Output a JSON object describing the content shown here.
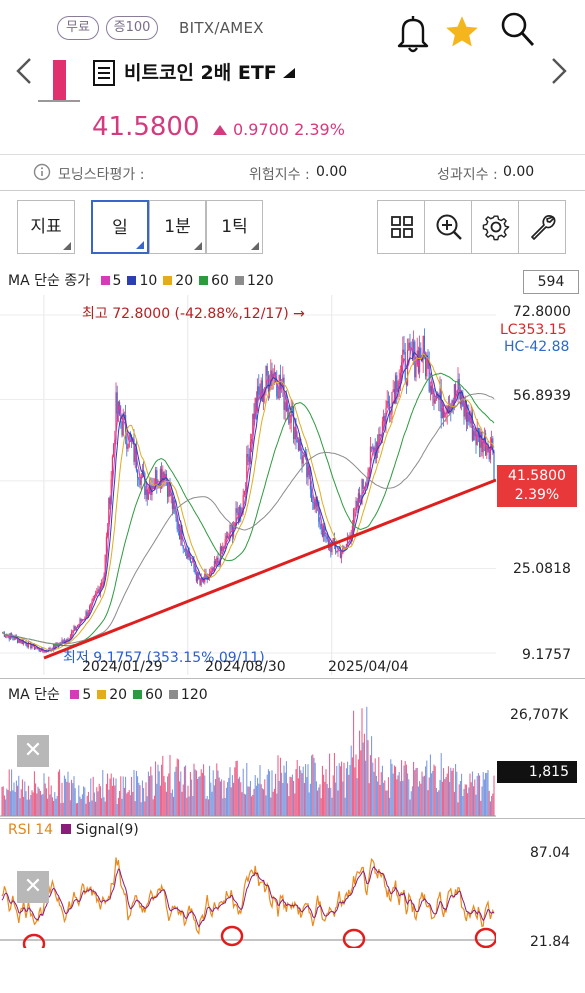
{
  "header": {
    "badge_free": "무료",
    "badge_margin": "증100",
    "ticker": "BITX/AMEX",
    "name": "비트코인 2배 ETF",
    "price": "41.5800",
    "change": "0.9700 2.39%"
  },
  "metrics": {
    "morningstar_label": "모닝스타평가 :",
    "risk_label": "위험지수 :",
    "risk_value": "0.00",
    "perf_label": "성과지수 :",
    "perf_value": "0.00"
  },
  "toolbar": {
    "indicator": "지표",
    "day": "일",
    "minute": "1분",
    "tick": "1틱"
  },
  "main_chart": {
    "legend_title": "MA 단순 종가",
    "ma": [
      {
        "label": "5",
        "color": "#d63ab6"
      },
      {
        "label": "10",
        "color": "#2b3fb0"
      },
      {
        "label": "20",
        "color": "#e2ac1a"
      },
      {
        "label": "60",
        "color": "#2c9a3f"
      },
      {
        "label": "120",
        "color": "#8c8c8c"
      }
    ],
    "count_box": "594",
    "y_ticks": [
      "72.8000",
      "56.8939",
      "25.0818",
      "9.1757"
    ],
    "lc_label": "LC353.15",
    "hc_label": "HC-42.88",
    "current_price": "41.5800",
    "current_pct": "2.39%",
    "high_annotation": "최고 72.8000 (-42.88%,12/17) →",
    "low_annotation": "최저 9.1757 (353.15%,09/11)",
    "x_labels": [
      "2024/01/29",
      "2024/08/30",
      "2025/04/04"
    ]
  },
  "volume_chart": {
    "legend_title": "MA 단순",
    "ma": [
      {
        "label": "5",
        "color": "#d63ab6"
      },
      {
        "label": "20",
        "color": "#e2ac1a"
      },
      {
        "label": "60",
        "color": "#2c9a3f"
      },
      {
        "label": "120",
        "color": "#8c8c8c"
      }
    ],
    "y_max": "26,707K",
    "current": "1,815"
  },
  "rsi_chart": {
    "rsi_label": "RSI 14",
    "signal_label": "Signal(9)",
    "y_ticks": [
      "87.04",
      "21.84"
    ]
  },
  "chart_data": {
    "type": "line",
    "title": "비트코인 2배 ETF",
    "x": [
      "2024/01/29",
      "2024/08/30",
      "2025/04/04"
    ],
    "series": [
      {
        "name": "종가",
        "values": [
          9.1757,
          72.8,
          41.58
        ]
      }
    ],
    "ylim": [
      9.1757,
      72.8
    ]
  }
}
